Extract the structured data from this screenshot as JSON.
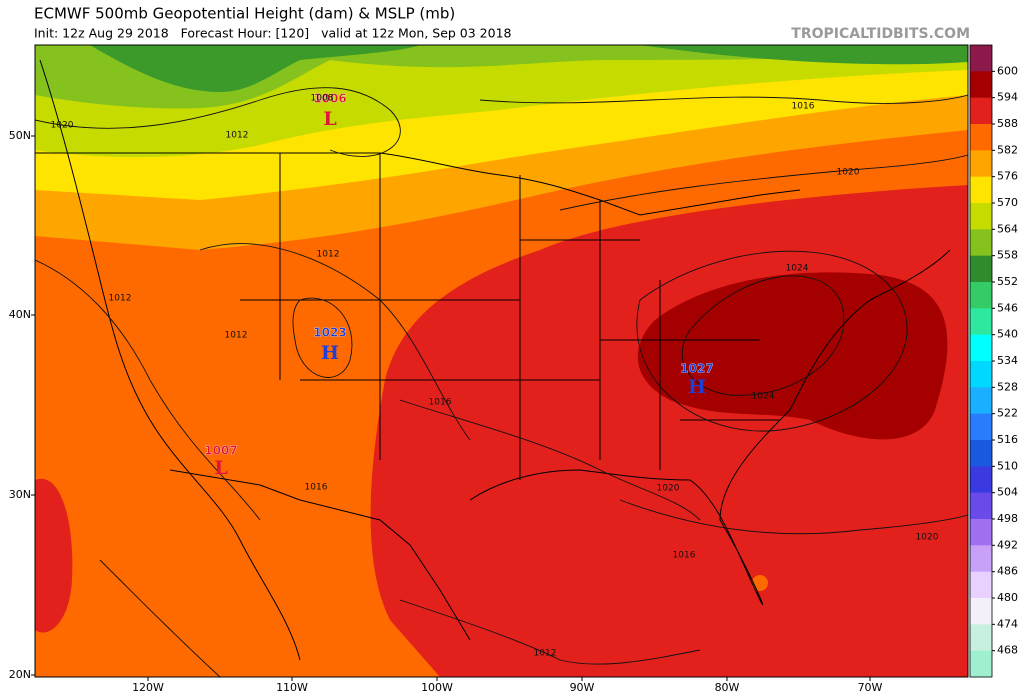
{
  "header": {
    "title": "ECMWF 500mb Geopotential Height (dam) & MSLP (mb)",
    "subtitle": "Init: 12z Aug 29 2018   Forecast Hour: [120]   valid at 12z Mon, Sep 03 2018",
    "watermark": "TROPICALTIDBITS.COM"
  },
  "latitude_labels": [
    "50N",
    "40N",
    "30N",
    "20N"
  ],
  "longitude_labels": [
    "120W",
    "110W",
    "100W",
    "90W",
    "80W",
    "70W"
  ],
  "colorbar": {
    "labels": [
      600,
      594,
      588,
      582,
      576,
      570,
      564,
      558,
      552,
      546,
      540,
      534,
      528,
      522,
      516,
      510,
      504,
      498,
      492,
      486,
      480,
      474,
      468
    ]
  },
  "pressure_centers": [
    {
      "symbol": "L",
      "value": "1006"
    },
    {
      "symbol": "H",
      "value": "1023"
    },
    {
      "symbol": "H",
      "value": "1027"
    },
    {
      "symbol": "L",
      "value": "1007"
    }
  ],
  "isobar_labels": [
    "1020",
    "1012",
    "1008",
    "1016",
    "1012",
    "1012",
    "1012",
    "1016",
    "1024",
    "1024",
    "1016",
    "1020",
    "1020",
    "1016",
    "1012",
    "1020"
  ]
}
